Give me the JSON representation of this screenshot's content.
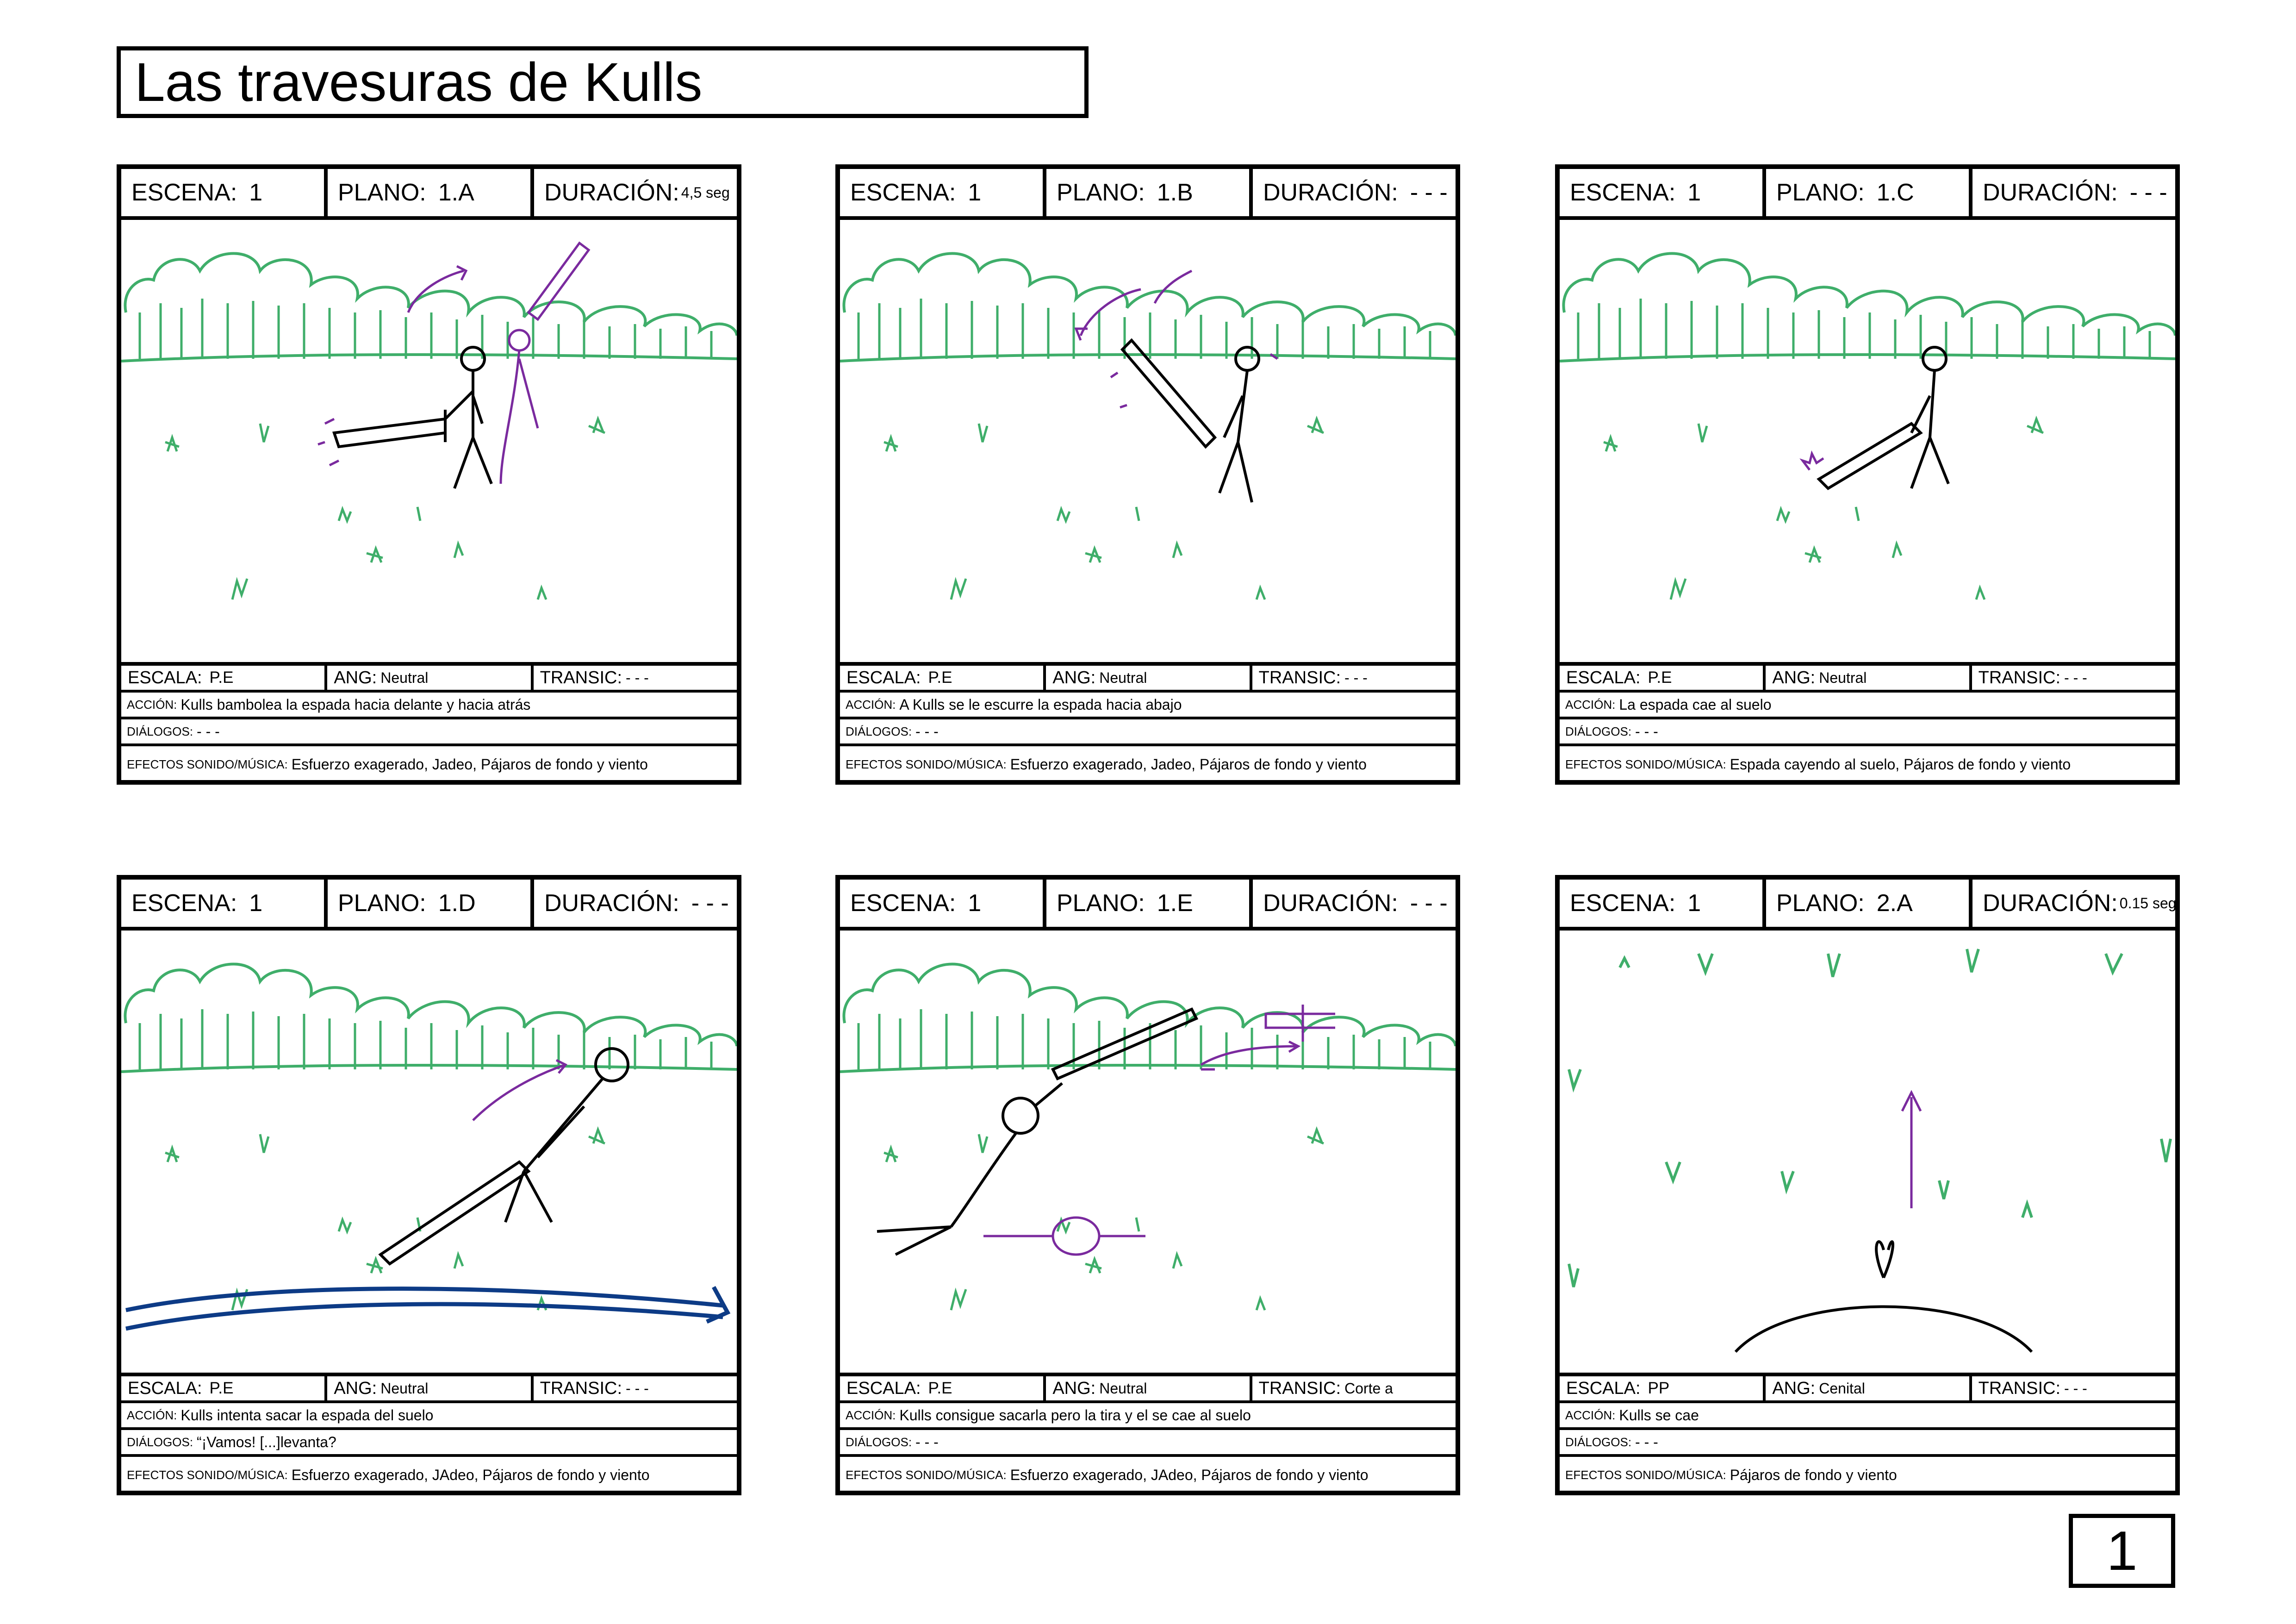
{
  "title": "Las travesuras de Kulls",
  "page_number": "1",
  "labels": {
    "escena": "ESCENA:",
    "plano": "PLANO:",
    "duracion": "DURACIÓN:",
    "escala": "ESCALA:",
    "ang": "ANG:",
    "transic": "TRANSIC:",
    "accion": "ACCIÓN:",
    "dialogos": "DIÁLOGOS:",
    "efectos": "EFECTOS SONIDO/MÚSICA:"
  },
  "panels": [
    {
      "escena": "1",
      "plano": "1.A",
      "duracion": "4,5 seg",
      "escala": "P.E",
      "ang": "Neutral",
      "transic": "- - -",
      "accion": "Kulls bambolea la espada hacia delante y hacia atrás",
      "dialogos": "- - -",
      "efectos": "Esfuerzo exagerado, Jadeo, Pájaros de fondo y viento"
    },
    {
      "escena": "1",
      "plano": "1.B",
      "duracion": "- - -",
      "escala": "P.E",
      "ang": "Neutral",
      "transic": "- - -",
      "accion": "A Kulls se le escurre la espada hacia abajo",
      "dialogos": "- - -",
      "efectos": "Esfuerzo exagerado, Jadeo, Pájaros de fondo y viento"
    },
    {
      "escena": "1",
      "plano": "1.C",
      "duracion": "- - -",
      "escala": "P.E",
      "ang": "Neutral",
      "transic": "- - -",
      "accion": "La espada cae al suelo",
      "dialogos": "- - -",
      "efectos": "Espada cayendo al suelo, Pájaros de fondo y viento"
    },
    {
      "escena": "1",
      "plano": "1.D",
      "duracion": "- - -",
      "escala": "P.E",
      "ang": "Neutral",
      "transic": "- - -",
      "accion": "Kulls intenta sacar la espada del suelo",
      "dialogos": "“¡Vamos! [...]levanta?",
      "efectos": "Esfuerzo exagerado, JAdeo, Pájaros de fondo y viento"
    },
    {
      "escena": "1",
      "plano": "1.E",
      "duracion": "- - -",
      "escala": "P.E",
      "ang": "Neutral",
      "transic": "Corte a",
      "accion": "Kulls consigue sacarla pero la tira y el se cae al suelo",
      "dialogos": "- - -",
      "efectos": "Esfuerzo exagerado, JAdeo, Pájaros de fondo y viento"
    },
    {
      "escena": "1",
      "plano": "2.A",
      "duracion": "0.15 seg",
      "escala": "PP",
      "ang": "Cenital",
      "transic": "- - -",
      "accion": "Kulls se cae",
      "dialogos": "- - -",
      "efectos": "Pájaros de fondo y viento"
    }
  ],
  "colors": {
    "ink": "#000000",
    "foliage": "#3fae6a",
    "accent": "#7a2a9e",
    "water": "#0d3b86"
  }
}
